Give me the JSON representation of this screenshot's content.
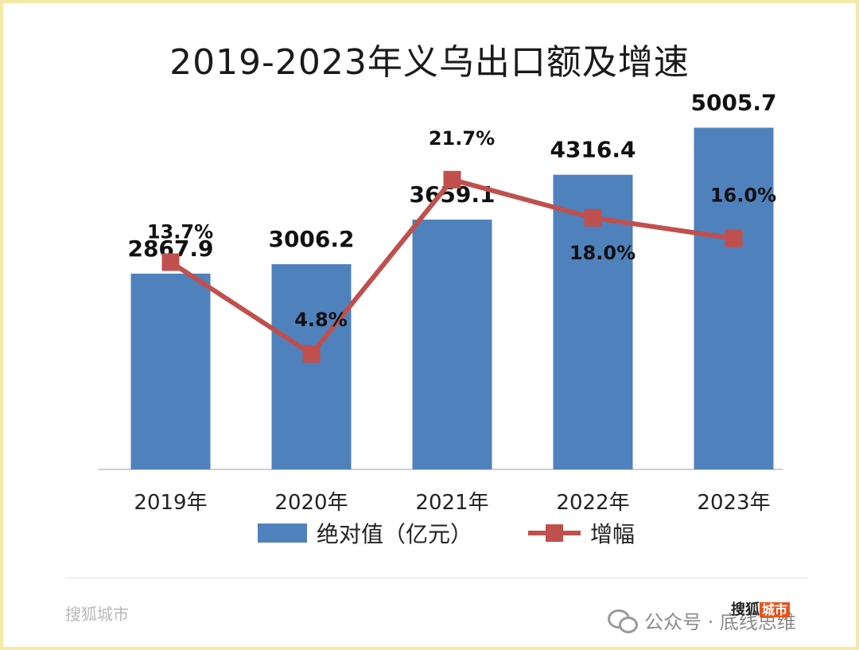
{
  "chart_data": {
    "type": "bar",
    "title": "2019-2023年义乌出口额及增速",
    "categories": [
      "2019年",
      "2020年",
      "2021年",
      "2022年",
      "2023年"
    ],
    "series": [
      {
        "name": "绝对值（亿元）",
        "type": "bar",
        "values": [
          2867.9,
          3006.2,
          3659.1,
          4316.4,
          5005.7
        ],
        "labels": [
          "2867.9",
          "3006.2",
          "3659.1",
          "4316.4",
          "5005.7"
        ],
        "color": "#4f81bd"
      },
      {
        "name": "增幅",
        "type": "line",
        "values": [
          13.7,
          4.8,
          21.7,
          18.0,
          16.0
        ],
        "labels": [
          "13.7%",
          "4.8%",
          "21.7%",
          "18.0%",
          "16.0%"
        ],
        "color": "#c0504d"
      }
    ],
    "ylim": [
      0,
      5000
    ],
    "ylim_secondary": [
      -6.4,
      26.7
    ],
    "legend": "bottom",
    "grid": false
  },
  "watermark": {
    "left": "搜狐城市",
    "right": "公众号 · 底线思维",
    "brand": "搜狐",
    "brand_tag": "城市"
  }
}
